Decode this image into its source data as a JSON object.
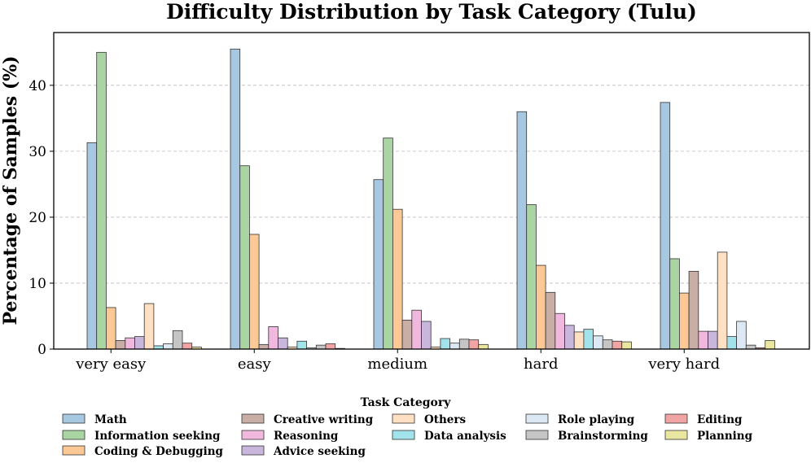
{
  "chart_data": {
    "type": "bar",
    "title": "Difficulty Distribution by Task Category (Tulu)",
    "xlabel": "",
    "ylabel": "Percentage of Samples (%)",
    "ylim": [
      0,
      48
    ],
    "yticks": [
      0,
      10,
      20,
      30,
      40
    ],
    "grid": "y-dashed",
    "categories": [
      "very easy",
      "easy",
      "medium",
      "hard",
      "very hard"
    ],
    "series": [
      {
        "name": "Math",
        "color": "#a6c8e0",
        "values": [
          31.3,
          45.5,
          25.7,
          36.0,
          37.4
        ]
      },
      {
        "name": "Information seeking",
        "color": "#a8d5a2",
        "values": [
          45.0,
          27.8,
          32.0,
          21.9,
          13.7
        ]
      },
      {
        "name": "Coding & Debugging",
        "color": "#fcc895",
        "values": [
          6.3,
          17.4,
          21.2,
          12.7,
          8.5
        ]
      },
      {
        "name": "Creative writing",
        "color": "#c9aea5",
        "values": [
          1.3,
          0.7,
          4.4,
          8.6,
          11.8
        ]
      },
      {
        "name": "Reasoning",
        "color": "#f1b8de",
        "values": [
          1.7,
          3.4,
          5.9,
          5.4,
          2.7
        ]
      },
      {
        "name": "Advice seeking",
        "color": "#c8b6dc",
        "values": [
          1.9,
          1.7,
          4.2,
          3.6,
          2.7
        ]
      },
      {
        "name": "Others",
        "color": "#ffe0c3",
        "values": [
          6.9,
          0.3,
          0.3,
          2.6,
          14.7
        ]
      },
      {
        "name": "Data analysis",
        "color": "#a2e2ea",
        "values": [
          0.5,
          1.2,
          1.6,
          3.0,
          1.9
        ]
      },
      {
        "name": "Role playing",
        "color": "#dce8f4",
        "values": [
          0.8,
          0.2,
          0.9,
          2.0,
          4.2
        ]
      },
      {
        "name": "Brainstorming",
        "color": "#c5c5c5",
        "values": [
          2.8,
          0.6,
          1.5,
          1.4,
          0.6
        ]
      },
      {
        "name": "Editing",
        "color": "#f0a4a4",
        "values": [
          0.9,
          0.8,
          1.4,
          1.2,
          0.2
        ]
      },
      {
        "name": "Planning",
        "color": "#e8e6a0",
        "values": [
          0.3,
          0.1,
          0.7,
          1.1,
          1.3
        ]
      }
    ],
    "legend": {
      "title": "Task Category",
      "placement": "bottom-center",
      "columns": [
        [
          "Math",
          "Information seeking",
          "Coding & Debugging"
        ],
        [
          "Creative writing",
          "Reasoning",
          "Advice seeking"
        ],
        [
          "Others",
          "Data analysis"
        ],
        [
          "Role playing",
          "Brainstorming"
        ],
        [
          "Editing",
          "Planning"
        ]
      ]
    }
  }
}
